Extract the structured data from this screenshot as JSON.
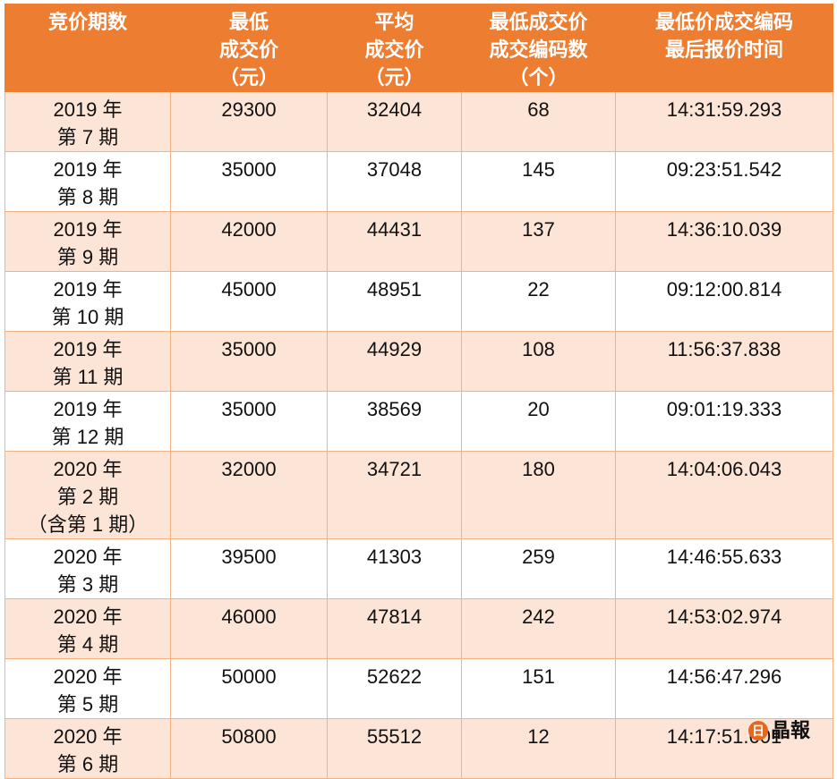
{
  "headers": [
    [
      "竞价期数"
    ],
    [
      "最低",
      "成交价",
      "（元）"
    ],
    [
      "平均",
      "成交价",
      "（元）"
    ],
    [
      "最低成交价",
      "成交编码数",
      "（个）"
    ],
    [
      "最低价成交编码",
      "最后报价时间"
    ]
  ],
  "rows": [
    {
      "period": [
        "2019 年",
        "第 7 期"
      ],
      "min_price": "29300",
      "avg_price": "32404",
      "count": "68",
      "time": "14:31:59.293"
    },
    {
      "period": [
        "2019 年",
        "第 8 期"
      ],
      "min_price": "35000",
      "avg_price": "37048",
      "count": "145",
      "time": "09:23:51.542"
    },
    {
      "period": [
        "2019 年",
        "第 9 期"
      ],
      "min_price": "42000",
      "avg_price": "44431",
      "count": "137",
      "time": "14:36:10.039"
    },
    {
      "period": [
        "2019 年",
        "第 10 期"
      ],
      "min_price": "45000",
      "avg_price": "48951",
      "count": "22",
      "time": "09:12:00.814"
    },
    {
      "period": [
        "2019 年",
        "第 11 期"
      ],
      "min_price": "35000",
      "avg_price": "44929",
      "count": "108",
      "time": "11:56:37.838"
    },
    {
      "period": [
        "2019 年",
        "第 12 期"
      ],
      "min_price": "35000",
      "avg_price": "38569",
      "count": "20",
      "time": "09:01:19.333"
    },
    {
      "period": [
        "2020 年",
        "第 2 期",
        "（含第 1 期）"
      ],
      "min_price": "32000",
      "avg_price": "34721",
      "count": "180",
      "time": "14:04:06.043"
    },
    {
      "period": [
        "2020 年",
        "第 3 期"
      ],
      "min_price": "39500",
      "avg_price": "41303",
      "count": "259",
      "time": "14:46:55.633"
    },
    {
      "period": [
        "2020 年",
        "第 4 期"
      ],
      "min_price": "46000",
      "avg_price": "47814",
      "count": "242",
      "time": "14:53:02.974"
    },
    {
      "period": [
        "2020 年",
        "第 5 期"
      ],
      "min_price": "50000",
      "avg_price": "52622",
      "count": "151",
      "time": "14:56:47.296"
    },
    {
      "period": [
        "2020 年",
        "第 6 期"
      ],
      "min_price": "50800",
      "avg_price": "55512",
      "count": "12",
      "time": "14:17:51.601"
    }
  ],
  "logo": {
    "badge": "日",
    "text": "晶報"
  },
  "colors": {
    "header_bg": "#ed7d31",
    "odd_row_bg": "#fce4d6",
    "border": "#f4b183"
  }
}
